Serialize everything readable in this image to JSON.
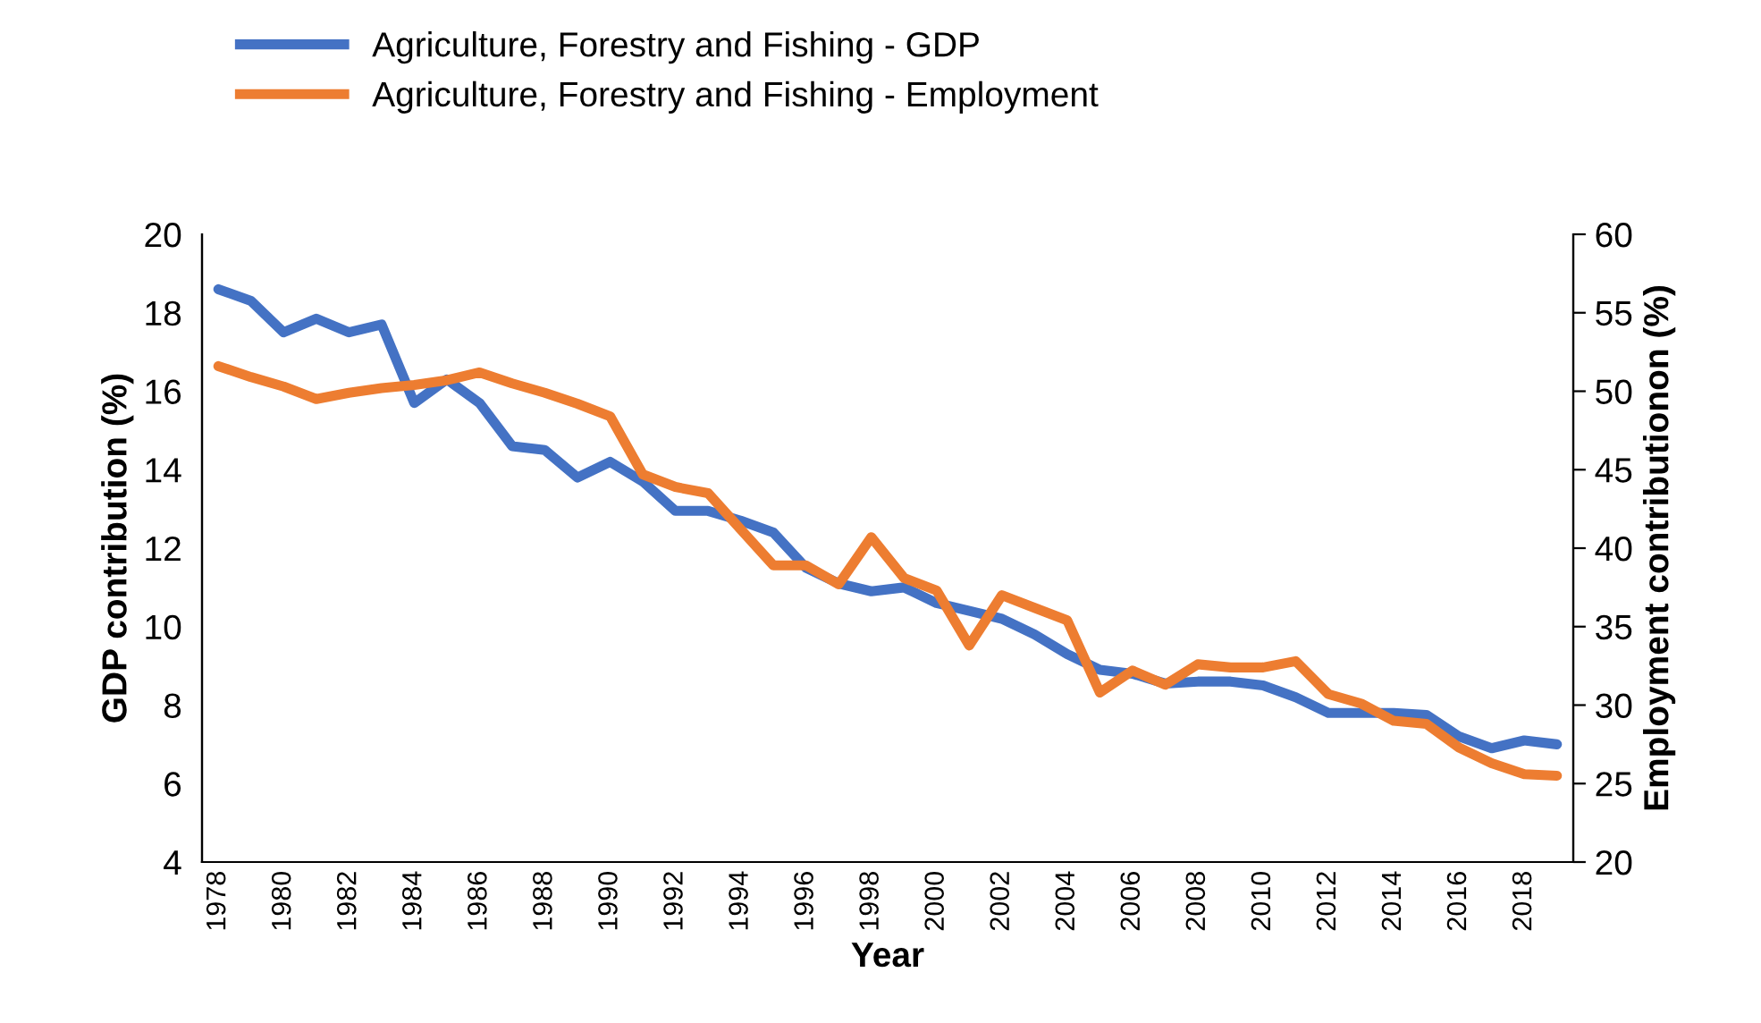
{
  "chart_data": {
    "type": "line",
    "xlabel": "Year",
    "ylabel": "GDP contribution (%)",
    "y2label": "Employment contributionon (%)",
    "x": [
      1978,
      1979,
      1980,
      1981,
      1982,
      1983,
      1984,
      1985,
      1986,
      1987,
      1988,
      1989,
      1990,
      1991,
      1992,
      1993,
      1994,
      1995,
      1996,
      1997,
      1998,
      1999,
      2000,
      2001,
      2002,
      2003,
      2004,
      2005,
      2006,
      2007,
      2008,
      2009,
      2010,
      2011,
      2012,
      2013,
      2014,
      2015,
      2016,
      2017,
      2018,
      2019
    ],
    "xlim": [
      1977.5,
      2019.5
    ],
    "xticks": [
      1978,
      1980,
      1982,
      1984,
      1986,
      1988,
      1990,
      1992,
      1994,
      1996,
      1998,
      2000,
      2002,
      2004,
      2006,
      2008,
      2010,
      2012,
      2014,
      2016,
      2018
    ],
    "ylim": [
      4,
      20
    ],
    "yticks": [
      4,
      6,
      8,
      10,
      12,
      14,
      16,
      18,
      20
    ],
    "y2lim": [
      20,
      60
    ],
    "y2ticks": [
      20,
      25,
      30,
      35,
      40,
      45,
      50,
      55,
      60
    ],
    "series": [
      {
        "name": "Agriculture, Forestry and Fishing - GDP",
        "color": "#4472c4",
        "values": [
          18.6,
          18.3,
          17.5,
          17.85,
          17.5,
          17.7,
          15.7,
          16.3,
          15.7,
          14.6,
          14.5,
          13.8,
          14.2,
          13.7,
          12.95,
          12.95,
          12.7,
          12.4,
          11.5,
          11.1,
          10.9,
          11.0,
          10.6,
          10.4,
          10.2,
          9.8,
          9.3,
          8.9,
          8.8,
          8.55,
          8.6,
          8.6,
          8.5,
          8.2,
          7.8,
          7.8,
          7.8,
          7.75,
          7.2,
          6.9,
          7.1,
          7.0
        ]
      },
      {
        "name": "Agriculture, Forestry and Fishing - Employment",
        "color": "#ed7d31",
        "axis": "y2",
        "values": [
          51.6,
          50.9,
          50.3,
          49.5,
          49.9,
          50.2,
          50.4,
          50.7,
          51.2,
          50.5,
          49.9,
          49.2,
          48.4,
          44.7,
          43.9,
          43.5,
          41.2,
          38.9,
          38.9,
          37.7,
          40.7,
          38.1,
          37.3,
          33.8,
          37.0,
          36.2,
          35.4,
          30.8,
          32.2,
          31.3,
          32.6,
          32.4,
          32.4,
          32.8,
          30.7,
          30.1,
          29.0,
          28.8,
          27.3,
          26.3,
          25.6,
          25.5
        ]
      }
    ],
    "legend": "top",
    "grid": false,
    "marker": "none",
    "line_style": "solid"
  }
}
